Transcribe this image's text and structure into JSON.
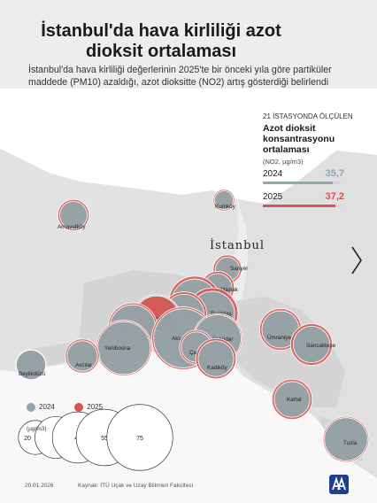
{
  "header": {
    "title": "İstanbul'da hava kirliliği azot dioksit ortalaması",
    "subtitle": "İstanbul'da hava kirliliği değerlerinin 2025'te bir önceki yıla göre partiküler maddede (PM10) azaldığı, azot dioksitte (NO2) artış gösterdiği belirlendi"
  },
  "panel": {
    "kicker": "21 İSTASYONDA ÖLÇÜLEN",
    "title": "Azot dioksit konsantrasyonu ortalaması",
    "unit": "(NO2, µg/m3)",
    "rows": [
      {
        "year": "2024",
        "value": "35,7",
        "num": 35.7,
        "color": "#8fa8ad"
      },
      {
        "year": "2025",
        "value": "37,2",
        "num": 37.2,
        "color": "#d9534f"
      }
    ]
  },
  "map": {
    "city": "İstanbul",
    "colors": {
      "y2024": "#8fa8ad",
      "y2025": "#d9534f",
      "land": "#e6e6e6",
      "sea": "#ffffff"
    },
    "stations": [
      {
        "name": "Arnavutköy",
        "v2024": 13,
        "v2025": 17
      },
      {
        "name": "Kumköy",
        "v2024": 6,
        "v2025": 8
      },
      {
        "name": "Sarıyer",
        "v2024": 10,
        "v2025": 14
      },
      {
        "name": "Maslak",
        "v2024": 14,
        "v2025": 19
      },
      {
        "name": "Kağıthane",
        "v2024": 36,
        "v2025": 46
      },
      {
        "name": "Beşiktaş",
        "v2024": 34,
        "v2025": 45
      },
      {
        "name": "Alibeyköy",
        "v2024": 28,
        "v2025": 35
      },
      {
        "name": "Esenler",
        "v2024": 40,
        "v2025": 36
      },
      {
        "name": "Bağcılar",
        "v2024": 36,
        "v2025": 42
      },
      {
        "name": "Aksaray",
        "v2024": 60,
        "v2025": 68
      },
      {
        "name": "Yenibosna",
        "v2024": 48,
        "v2025": 53
      },
      {
        "name": "Avcılar",
        "v2024": 16,
        "v2025": 20
      },
      {
        "name": "Beylikdüzü",
        "v2024": 15,
        "v2025": 16
      },
      {
        "name": "Üsküdar",
        "v2024": 38,
        "v2025": 42
      },
      {
        "name": "Çaliamca",
        "v2024": 16,
        "v2025": 20
      },
      {
        "name": "Kadıköy",
        "v2024": 22,
        "v2025": 28
      },
      {
        "name": "Ümraniye",
        "v2024": 24,
        "v2025": 30
      },
      {
        "name": "Sancaktepe",
        "v2024": 23,
        "v2025": 30
      },
      {
        "name": "Kartal",
        "v2024": 22,
        "v2025": 28
      },
      {
        "name": "Tuzla",
        "v2024": 32,
        "v2025": 36
      }
    ]
  },
  "legend": {
    "y2024": "2024",
    "y2025": "2025",
    "unit": "(µg/m3)",
    "scale": [
      "20",
      "30",
      "45",
      "55",
      "75"
    ]
  },
  "footer": {
    "date": "20.01.2026",
    "source": "Kaynak: İTÜ Uçak ve Uzay Bilimleri Fakültesi"
  }
}
